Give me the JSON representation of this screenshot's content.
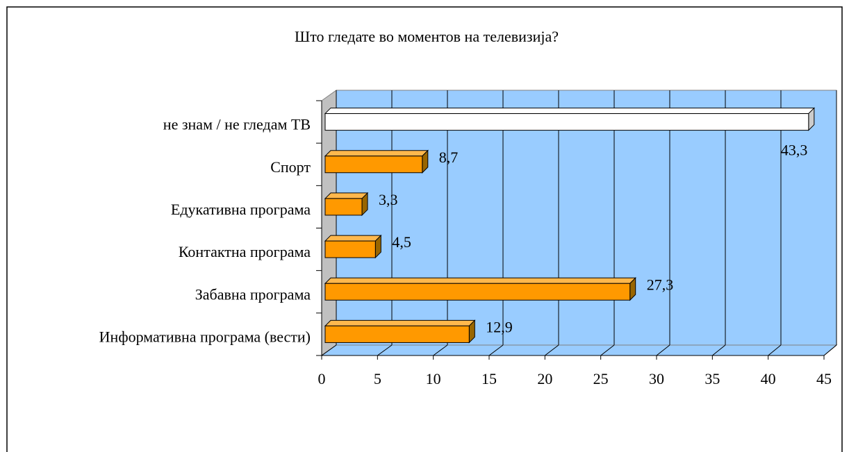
{
  "chart_data": {
    "type": "bar",
    "title": "Што гледате во моментов на телевизија?",
    "categories": [
      "Информативна програма (вести)",
      "Забавна програма",
      "Контактна програма",
      "Едукативна програма",
      "Спорт",
      "не знам / не гледам ТВ"
    ],
    "values": [
      12.9,
      27.3,
      4.5,
      3.3,
      8.7,
      43.3
    ],
    "value_labels": [
      "12,9",
      "27,3",
      "4,5",
      "3,3",
      "8,7",
      "43,3"
    ],
    "colors": [
      "#ff9900",
      "#ff9900",
      "#ff9900",
      "#ff9900",
      "#ff9900",
      "#ffffff"
    ],
    "xlim": [
      0,
      45
    ],
    "xticks": [
      0,
      5,
      10,
      15,
      20,
      25,
      30,
      35,
      40,
      45
    ],
    "grid": true
  }
}
